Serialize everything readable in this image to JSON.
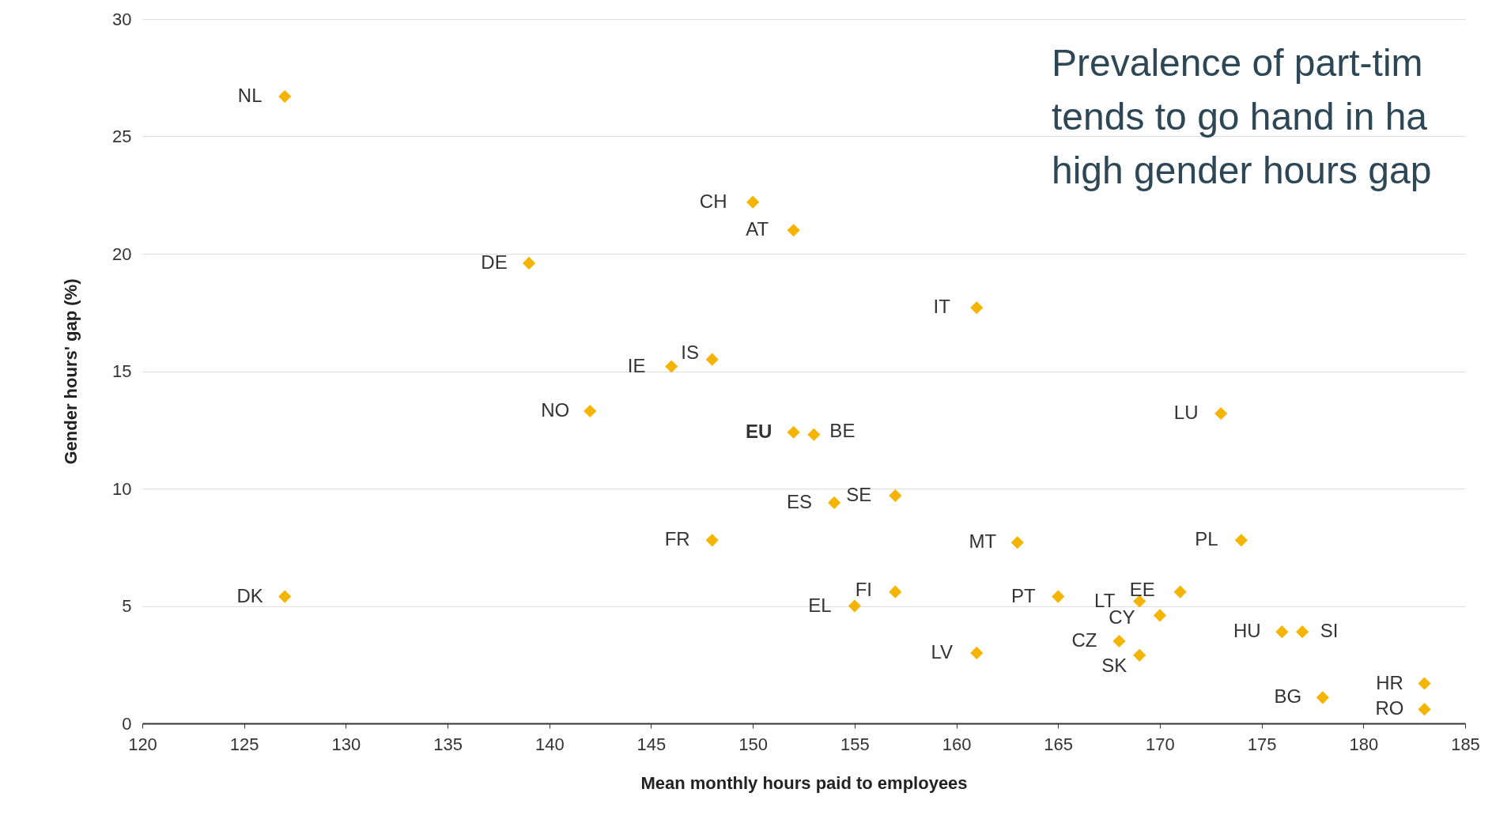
{
  "chart_data": {
    "type": "scatter",
    "xlabel": "Mean monthly hours paid to employees",
    "ylabel": "Gender hours' gap (%)",
    "annotations": [
      "Prevalence of part-tim",
      "tends to go hand in ha",
      "high gender hours gap"
    ],
    "x": [
      127,
      150,
      152,
      139,
      161,
      146,
      148,
      142,
      173,
      152,
      153,
      157,
      154,
      148,
      163,
      174,
      127,
      157,
      155,
      165,
      171,
      169,
      170,
      168,
      169,
      161,
      176,
      177,
      178,
      183,
      183
    ],
    "values": [
      26.7,
      22.2,
      21.0,
      19.6,
      17.7,
      15.2,
      15.5,
      13.3,
      13.2,
      12.4,
      12.3,
      9.7,
      9.4,
      7.8,
      7.7,
      7.8,
      5.4,
      5.6,
      5.0,
      5.4,
      5.6,
      5.2,
      4.6,
      3.5,
      2.9,
      3.0,
      3.9,
      3.9,
      1.1,
      1.7,
      0.6
    ],
    "value_labels": [
      "NL",
      "CH",
      "AT",
      "DE",
      "IT",
      "IE",
      "IS",
      "NO",
      "LU",
      "EU",
      "BE",
      "SE",
      "ES",
      "FR",
      "MT",
      "PL",
      "DK",
      "FI",
      "EL",
      "PT",
      "EE",
      "LT",
      "CY",
      "CZ",
      "SK",
      "LV",
      "HU",
      "SI",
      "BG",
      "HR",
      "RO"
    ],
    "color": "#f5b400",
    "marker": "diamond",
    "grid": "y",
    "xlim": [
      120,
      185
    ],
    "xticks": [
      120,
      125,
      130,
      135,
      140,
      145,
      150,
      155,
      160,
      165,
      170,
      175,
      180,
      185
    ],
    "ylim": [
      0,
      30
    ],
    "yticks": [
      0,
      5,
      10,
      15,
      20,
      25,
      30
    ]
  }
}
